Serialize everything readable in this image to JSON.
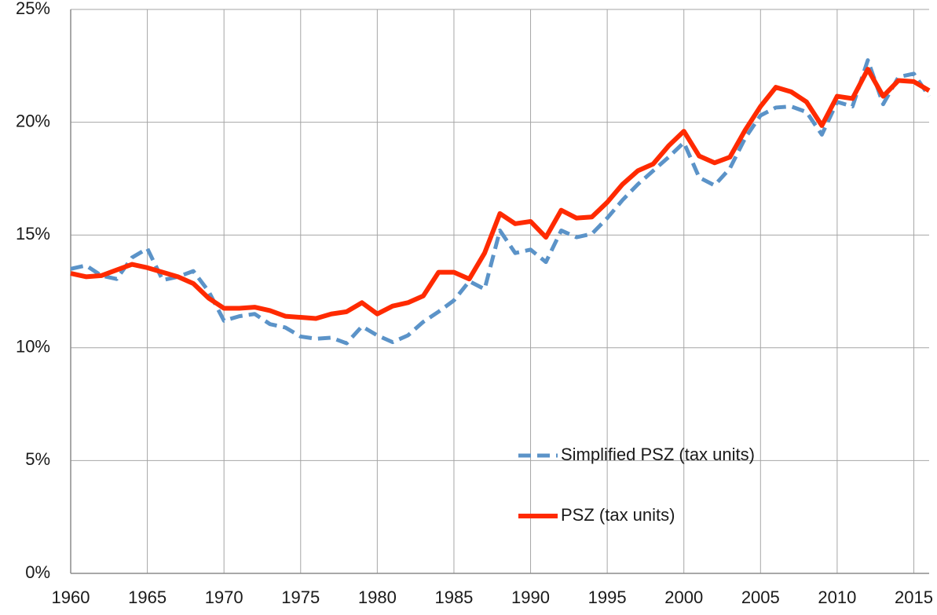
{
  "chart_data": {
    "type": "line",
    "x": [
      1960,
      1961,
      1962,
      1963,
      1964,
      1965,
      1966,
      1967,
      1968,
      1969,
      1970,
      1971,
      1972,
      1973,
      1974,
      1975,
      1976,
      1977,
      1978,
      1979,
      1980,
      1981,
      1982,
      1983,
      1984,
      1985,
      1986,
      1987,
      1988,
      1989,
      1990,
      1991,
      1992,
      1993,
      1994,
      1995,
      1996,
      1997,
      1998,
      1999,
      2000,
      2001,
      2002,
      2003,
      2004,
      2005,
      2006,
      2007,
      2008,
      2009,
      2010,
      2011,
      2012,
      2013,
      2014,
      2015,
      2016
    ],
    "series": [
      {
        "name": "Simplified PSZ (tax units)",
        "color": "#5b93c8",
        "style": "dashed",
        "values": [
          13.5,
          13.65,
          13.2,
          13.05,
          14.0,
          14.4,
          13.0,
          13.15,
          13.4,
          12.5,
          11.2,
          11.4,
          11.5,
          11.05,
          10.9,
          10.5,
          10.4,
          10.45,
          10.2,
          10.95,
          10.55,
          10.25,
          10.55,
          11.15,
          11.6,
          12.1,
          12.95,
          12.6,
          15.2,
          14.2,
          14.35,
          13.8,
          15.2,
          14.9,
          15.05,
          15.75,
          16.55,
          17.25,
          17.85,
          18.45,
          19.1,
          17.55,
          17.2,
          17.95,
          19.3,
          20.3,
          20.65,
          20.7,
          20.45,
          19.45,
          20.9,
          20.7,
          22.75,
          20.8,
          22.0,
          22.15,
          21.15
        ]
      },
      {
        "name": "PSZ (tax units)",
        "color": "#ff2a00",
        "style": "solid",
        "values": [
          13.3,
          13.15,
          13.2,
          13.45,
          13.7,
          13.55,
          13.35,
          13.15,
          12.85,
          12.2,
          11.75,
          11.75,
          11.8,
          11.65,
          11.4,
          11.35,
          11.3,
          11.5,
          11.6,
          12.0,
          11.5,
          11.85,
          12.0,
          12.3,
          13.35,
          13.35,
          13.05,
          14.2,
          15.95,
          15.5,
          15.6,
          14.9,
          16.1,
          15.75,
          15.8,
          16.45,
          17.25,
          17.85,
          18.15,
          18.95,
          19.6,
          18.5,
          18.2,
          18.45,
          19.65,
          20.7,
          21.55,
          21.35,
          20.9,
          19.85,
          21.15,
          21.05,
          22.35,
          21.15,
          21.85,
          21.8,
          21.4
        ]
      }
    ],
    "xlim": [
      1960,
      2016
    ],
    "xticks": [
      1960,
      1965,
      1970,
      1975,
      1980,
      1985,
      1990,
      1995,
      2000,
      2005,
      2010,
      2015
    ],
    "ylim": [
      0,
      25
    ],
    "yticks": [
      {
        "value": 0,
        "label": "0%"
      },
      {
        "value": 5,
        "label": "5%"
      },
      {
        "value": 10,
        "label": "10%"
      },
      {
        "value": 15,
        "label": "15%"
      },
      {
        "value": 20,
        "label": "20%"
      },
      {
        "value": 25,
        "label": "25%"
      }
    ],
    "grid": true,
    "legend": "lower right"
  }
}
